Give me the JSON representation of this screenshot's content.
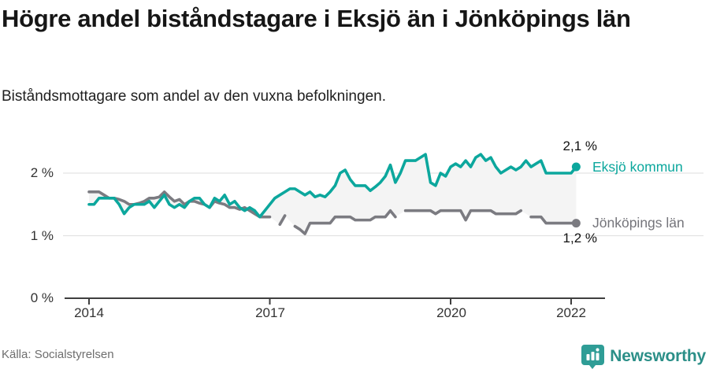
{
  "header": {
    "title": "Högre andel biståndstagare i Eksjö än i Jönköpings län",
    "subtitle": "Biståndsmottagare som andel av den vuxna befolkningen."
  },
  "chart_data": {
    "type": "line",
    "title": "Högre andel biståndstagare i Eksjö än i Jönköpings län",
    "ylabel": "Biståndsmottagare som andel av den vuxna befolkningen (%)",
    "x_unit": "month",
    "x_start": "2014-01",
    "x_end": "2022-02",
    "ylim": [
      0,
      2.5
    ],
    "grid_on": true,
    "grid_y": [
      1,
      2
    ],
    "legend_position": "right-end",
    "yticks": [
      {
        "value": 0,
        "label": "0 %"
      },
      {
        "value": 1,
        "label": "1 %"
      },
      {
        "value": 2,
        "label": "2 %"
      }
    ],
    "xticks": [
      {
        "month_index": 0,
        "label": "2014"
      },
      {
        "month_index": 36,
        "label": "2017"
      },
      {
        "month_index": 72,
        "label": "2020"
      },
      {
        "month_index": 96,
        "label": "2022"
      }
    ],
    "colors": {
      "grid": "#e3e3e3",
      "axis": "#3f3f3f",
      "fill": "#f4f4f4"
    },
    "series": [
      {
        "name": "Eksjö kommun",
        "end_label": "2,1 %",
        "end_value": 2.1,
        "color": "#0ca79d",
        "values": [
          1.5,
          1.5,
          1.6,
          1.6,
          1.6,
          1.6,
          1.5,
          1.35,
          1.45,
          1.5,
          1.5,
          1.5,
          1.55,
          1.45,
          1.55,
          1.65,
          1.5,
          1.45,
          1.5,
          1.45,
          1.55,
          1.6,
          1.6,
          1.5,
          1.45,
          1.6,
          1.55,
          1.65,
          1.5,
          1.55,
          1.45,
          1.4,
          1.45,
          1.4,
          1.3,
          1.4,
          1.5,
          1.6,
          1.65,
          1.7,
          1.75,
          1.75,
          1.7,
          1.65,
          1.7,
          1.62,
          1.65,
          1.62,
          1.7,
          1.8,
          2.0,
          2.05,
          1.9,
          1.8,
          1.8,
          1.8,
          1.72,
          1.78,
          1.85,
          1.95,
          2.13,
          1.85,
          2.0,
          2.2,
          2.2,
          2.2,
          2.25,
          2.3,
          1.85,
          1.8,
          2.0,
          1.95,
          2.1,
          2.15,
          2.1,
          2.2,
          2.1,
          2.25,
          2.3,
          2.2,
          2.25,
          2.1,
          2.0,
          2.05,
          2.1,
          2.05,
          2.1,
          2.2,
          2.1,
          2.15,
          2.2,
          2.0,
          2.0,
          2.0,
          2.0,
          2.0,
          2.0,
          2.1
        ]
      },
      {
        "name": "Jönköpings län",
        "end_label": "1,2 %",
        "end_value": 1.2,
        "color": "#7b7b81",
        "values": [
          1.7,
          1.7,
          1.7,
          1.65,
          1.6,
          1.6,
          1.58,
          1.55,
          1.5,
          1.5,
          1.52,
          1.55,
          1.6,
          1.6,
          1.62,
          1.7,
          1.62,
          1.55,
          1.58,
          1.5,
          1.55,
          1.55,
          1.52,
          1.5,
          1.45,
          1.55,
          1.52,
          1.5,
          1.45,
          1.45,
          1.42,
          1.45,
          1.4,
          1.35,
          1.3,
          1.3,
          1.3,
          null,
          1.18,
          1.32,
          null,
          1.15,
          1.1,
          1.03,
          1.2,
          1.2,
          1.2,
          1.2,
          1.2,
          1.3,
          1.3,
          1.3,
          1.3,
          1.25,
          1.25,
          1.25,
          1.25,
          1.3,
          1.3,
          1.3,
          1.4,
          1.3,
          null,
          1.4,
          1.4,
          1.4,
          1.4,
          1.4,
          1.4,
          1.35,
          1.4,
          1.4,
          1.4,
          1.4,
          1.4,
          1.25,
          1.4,
          1.4,
          1.4,
          1.4,
          1.4,
          1.35,
          1.35,
          1.35,
          1.35,
          1.35,
          1.4,
          null,
          1.3,
          1.3,
          1.3,
          1.2,
          1.2,
          1.2,
          1.2,
          1.2,
          1.2,
          1.2
        ]
      }
    ]
  },
  "footer": {
    "source": "Källa: Socialstyrelsen",
    "brand": "Newsworthy"
  }
}
